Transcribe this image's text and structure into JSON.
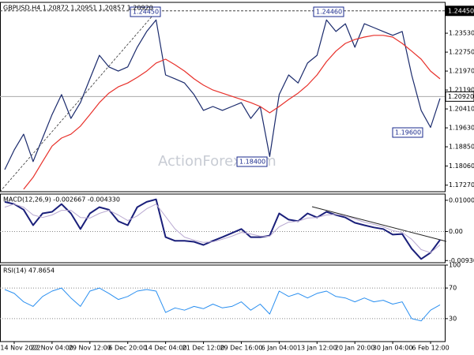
{
  "chart_data": [
    {
      "type": "line",
      "title": "GBPUSD,H4  1.20872 1.20951 1.20857 1.20920",
      "watermark": "ActionForex.com",
      "ylim": [
        1.17,
        1.248
      ],
      "yticks": [
        {
          "value": 1.2353,
          "label": "1.23530"
        },
        {
          "value": 1.2275,
          "label": "1.22750"
        },
        {
          "value": 1.2197,
          "label": "1.21970"
        },
        {
          "value": 1.2119,
          "label": "1.21190"
        },
        {
          "value": 1.2041,
          "label": "1.20410"
        },
        {
          "value": 1.1963,
          "label": "1.19630"
        },
        {
          "value": 1.1885,
          "label": "1.18850"
        },
        {
          "value": 1.1806,
          "label": "1.18060"
        },
        {
          "value": 1.1727,
          "label": "1.17270"
        }
      ],
      "levels": [
        {
          "value": 1.2445,
          "label": "1.24450"
        },
        {
          "value": 1.2092,
          "label": "1.20920"
        }
      ],
      "annotations": [
        "1.24450",
        "1.24460",
        "1.18400",
        "1.19600"
      ],
      "series": [
        {
          "color": "#1a2a6c",
          "values": [
            1.1791,
            1.1872,
            1.1937,
            1.1824,
            1.1921,
            1.2018,
            1.21,
            1.2002,
            1.2067,
            1.2165,
            1.2262,
            1.2214,
            1.2197,
            1.2214,
            1.2295,
            1.236,
            1.2408,
            1.2181,
            1.2165,
            1.2148,
            1.21,
            1.2035,
            1.2051,
            1.2035,
            1.2051,
            1.2067,
            1.2002,
            1.2051,
            1.1845,
            1.21,
            1.2181,
            1.2148,
            1.223,
            1.2262,
            1.2408,
            1.236,
            1.2392,
            1.2295,
            1.2392,
            1.2376,
            1.236,
            1.2344,
            1.236,
            1.2181,
            1.2035,
            1.1965,
            1.2084
          ]
        },
        {
          "color": "#e8302a",
          "values": [
            null,
            null,
            1.171,
            1.1759,
            1.1824,
            1.1888,
            1.1921,
            1.1937,
            1.197,
            1.2018,
            1.2067,
            1.2106,
            1.2132,
            1.2148,
            1.2171,
            1.2197,
            1.223,
            1.2246,
            1.2223,
            1.2197,
            1.2165,
            1.2139,
            1.2119,
            1.2106,
            1.2093,
            1.208,
            1.2067,
            1.2051,
            1.2025,
            1.2051,
            1.208,
            1.2106,
            1.2139,
            1.2181,
            1.2236,
            1.2279,
            1.2311,
            1.2327,
            1.2337,
            1.2344,
            1.2344,
            1.2337,
            1.2311,
            1.2279,
            1.2246,
            1.2197,
            1.2165
          ]
        }
      ]
    },
    {
      "type": "line",
      "title": "MACD(12,26,9) -0.002667 -0.004330",
      "zero_line": true,
      "ylim": [
        -0.01,
        0.012
      ],
      "yticks": [
        0.010004,
        {
          "value": 0,
          "label": "0.00"
        },
        -0.009306
      ],
      "series": [
        {
          "color": "#1a1f7a",
          "width": 2,
          "values": [
            0.0095,
            0.0088,
            0.007,
            0.002,
            0.0058,
            0.0063,
            0.0088,
            0.0058,
            0.0008,
            0.0058,
            0.0078,
            0.007,
            0.0033,
            0.002,
            0.0078,
            0.0095,
            0.0103,
            -0.0018,
            -0.003,
            -0.003,
            -0.0033,
            -0.0043,
            -0.003,
            -0.0018,
            -0.0005,
            0.0008,
            -0.0018,
            -0.0018,
            -0.0013,
            0.0058,
            0.0038,
            0.0033,
            0.0058,
            0.0045,
            0.0063,
            0.0053,
            0.0045,
            0.0028,
            0.002,
            0.0013,
            0.0008,
            -0.001,
            -0.0008,
            -0.0055,
            -0.0088,
            -0.0068,
            -0.0027
          ]
        },
        {
          "color": "#b8a8d0",
          "width": 1,
          "values": [
            0.0078,
            0.0088,
            0.0078,
            0.0053,
            0.0045,
            0.0053,
            0.0068,
            0.0068,
            0.0045,
            0.0043,
            0.0058,
            0.0068,
            0.0053,
            0.0035,
            0.005,
            0.0073,
            0.0088,
            0.0048,
            0.0008,
            -0.0018,
            -0.0028,
            -0.0035,
            -0.0033,
            -0.0025,
            -0.0015,
            -0.0003,
            -0.0008,
            -0.0015,
            -0.0015,
            0.0015,
            0.003,
            0.0033,
            0.0043,
            0.0045,
            0.0053,
            0.0055,
            0.005,
            0.004,
            0.003,
            0.0023,
            0.0015,
            0.0003,
            -0.0003,
            -0.0025,
            -0.0058,
            -0.0068,
            -0.0043
          ]
        }
      ]
    },
    {
      "type": "line",
      "title": "RSI(14) 47.8654",
      "grid": true,
      "ylim": [
        0,
        100
      ],
      "yticks": [
        100,
        70,
        30
      ],
      "categories": [
        null,
        "14 Nov 2022",
        null,
        null,
        null,
        "22 Nov 04:00",
        null,
        null,
        null,
        "29 Nov 12:00",
        null,
        null,
        null,
        "6 Dec 20:00",
        null,
        null,
        null,
        "14 Dec 04:00",
        null,
        null,
        null,
        "21 Dec 12:00",
        null,
        null,
        null,
        "29 Dec 16:00",
        null,
        null,
        null,
        "6 Jan 04:00",
        null,
        null,
        null,
        "13 Jan 12:00",
        null,
        null,
        null,
        "20 Jan 20:00",
        null,
        null,
        null,
        "30 Jan 04:00",
        null,
        null,
        null,
        "6 Feb 12:00",
        null
      ],
      "series": [
        {
          "color": "#2a8ff0",
          "width": 1,
          "values": [
            68,
            63,
            52,
            46,
            59,
            66,
            70,
            57,
            46,
            66,
            70,
            63,
            55,
            59,
            66,
            68,
            66,
            38,
            44,
            41,
            46,
            43,
            49,
            44,
            46,
            52,
            41,
            49,
            36,
            66,
            59,
            63,
            57,
            63,
            66,
            59,
            57,
            52,
            57,
            52,
            54,
            49,
            52,
            30,
            27,
            41,
            48
          ]
        }
      ]
    }
  ]
}
